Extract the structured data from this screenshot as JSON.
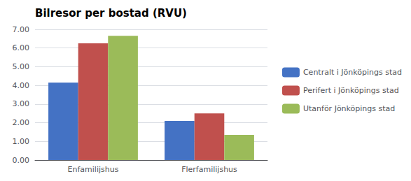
{
  "chart_data": {
    "type": "bar",
    "title": "Bilresor per bostad (RVU)",
    "categories": [
      "Enfamilijshus",
      "Flerfamilijshus"
    ],
    "series": [
      {
        "name": "Centralt i Jönköpings stad",
        "color": "#4472C4",
        "values": [
          4.15,
          2.1
        ]
      },
      {
        "name": "Perifert i Jönköpings stad",
        "color": "#C0504D",
        "values": [
          6.25,
          2.5
        ]
      },
      {
        "name": "Utanför Jönköpings stad",
        "color": "#9BBB59",
        "values": [
          6.65,
          1.35
        ]
      }
    ],
    "ylim": [
      0,
      7.0
    ],
    "yticks": [
      {
        "value": 0,
        "label": "0.00"
      },
      {
        "value": 1,
        "label": "1.00"
      },
      {
        "value": 2,
        "label": "2.00"
      },
      {
        "value": 3,
        "label": "3.00"
      },
      {
        "value": 4,
        "label": "4.00"
      },
      {
        "value": 5,
        "label": "5.00"
      },
      {
        "value": 6,
        "label": "6.00"
      },
      {
        "value": 7,
        "label": "7.00"
      }
    ],
    "grid": true,
    "legend": "right"
  }
}
